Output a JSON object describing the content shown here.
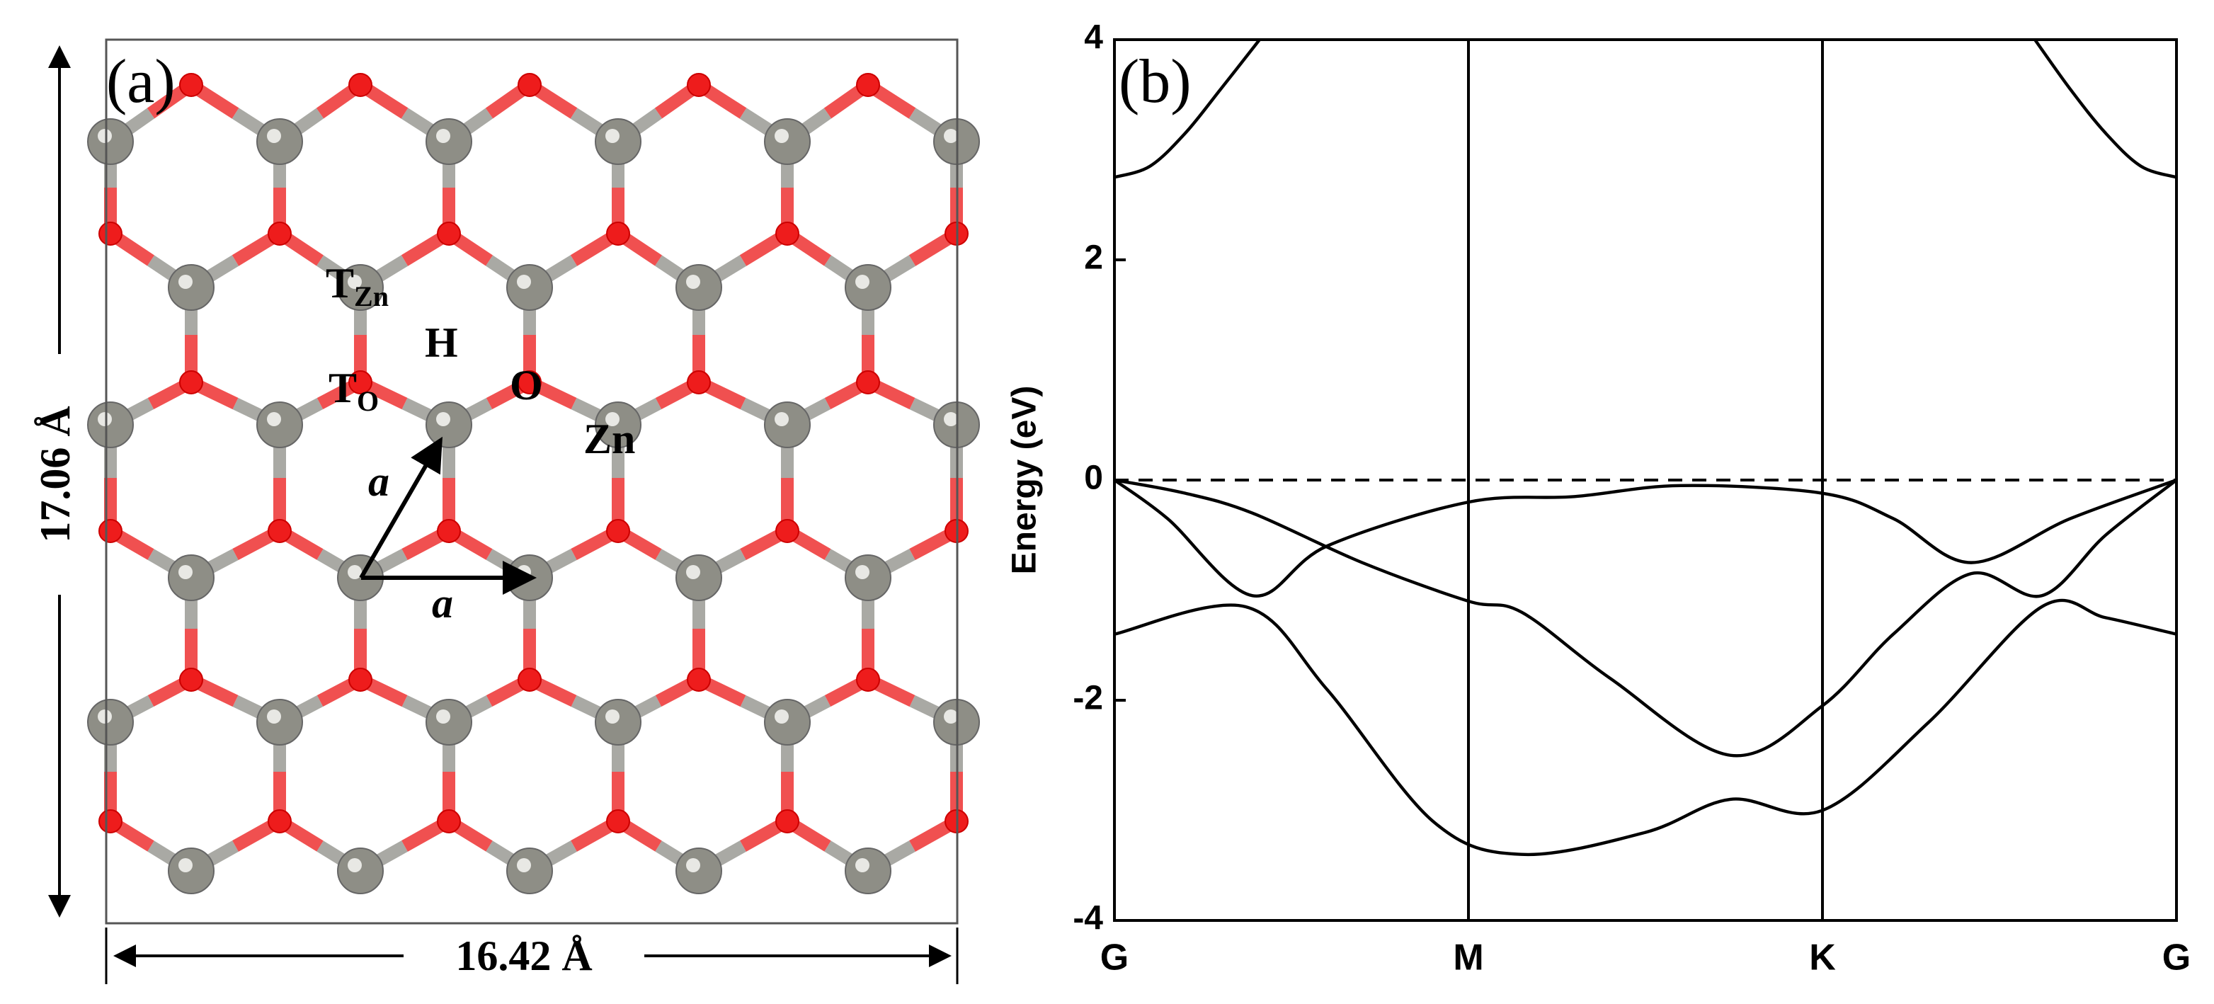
{
  "structure": {
    "panel_label": "(a)",
    "height_label": "17.06 Å",
    "width_label": "16.42 Å",
    "sites": [
      {
        "main": "T",
        "sub": "Zn"
      },
      {
        "main": "H"
      },
      {
        "main": "T",
        "sub": "O"
      },
      {
        "main": "O"
      },
      {
        "main": "Zn"
      }
    ],
    "vectors": [
      "a",
      "a"
    ]
  },
  "chart_data": {
    "type": "line",
    "panel_label": "(b)",
    "ylabel": "Energy (eV)",
    "xlim": [
      0,
      3
    ],
    "xticks": [
      {
        "value": 0,
        "label": "G"
      },
      {
        "value": 1,
        "label": "M"
      },
      {
        "value": 2,
        "label": "K"
      },
      {
        "value": 3,
        "label": "G"
      }
    ],
    "ylim": [
      -4,
      4
    ],
    "yticks": [
      -4,
      -2,
      0,
      2,
      4
    ],
    "reference_line": 0,
    "reference_dashed": true,
    "grid": true,
    "series": [
      {
        "color": "#000000",
        "x": [
          0,
          0.1,
          0.2,
          0.3,
          0.41
        ],
        "values": [
          2.75,
          2.85,
          3.15,
          3.55,
          4
        ]
      },
      {
        "color": "#000000",
        "x": [
          2.6,
          2.7,
          2.8,
          2.9,
          3
        ],
        "values": [
          4,
          3.55,
          3.15,
          2.85,
          2.75
        ]
      },
      {
        "color": "#000000",
        "x": [
          0,
          0.15,
          0.39,
          0.6,
          1,
          1.3,
          1.6,
          2,
          2.2,
          2.42,
          2.7,
          3
        ],
        "values": [
          0,
          -0.35,
          -1.05,
          -0.6,
          -0.2,
          -0.15,
          -0.05,
          -0.12,
          -0.35,
          -0.75,
          -0.35,
          0
        ]
      },
      {
        "color": "#000000",
        "x": [
          0,
          0.2,
          0.39,
          0.7,
          1,
          1.15,
          1.4,
          1.74,
          2,
          2.2,
          2.42,
          2.62,
          2.8,
          3
        ],
        "values": [
          0,
          -0.12,
          -0.3,
          -0.75,
          -1.1,
          -1.2,
          -1.8,
          -2.5,
          -2.05,
          -1.4,
          -0.85,
          -1.05,
          -0.5,
          0
        ]
      },
      {
        "color": "#000000",
        "x": [
          0,
          0.37,
          0.6,
          0.9,
          1.15,
          1.5,
          1.74,
          2,
          2.3,
          2.62,
          2.8,
          3
        ],
        "values": [
          -1.4,
          -1.15,
          -1.9,
          -3.1,
          -3.4,
          -3.2,
          -2.9,
          -3.0,
          -2.2,
          -1.15,
          -1.25,
          -1.4
        ]
      }
    ]
  }
}
